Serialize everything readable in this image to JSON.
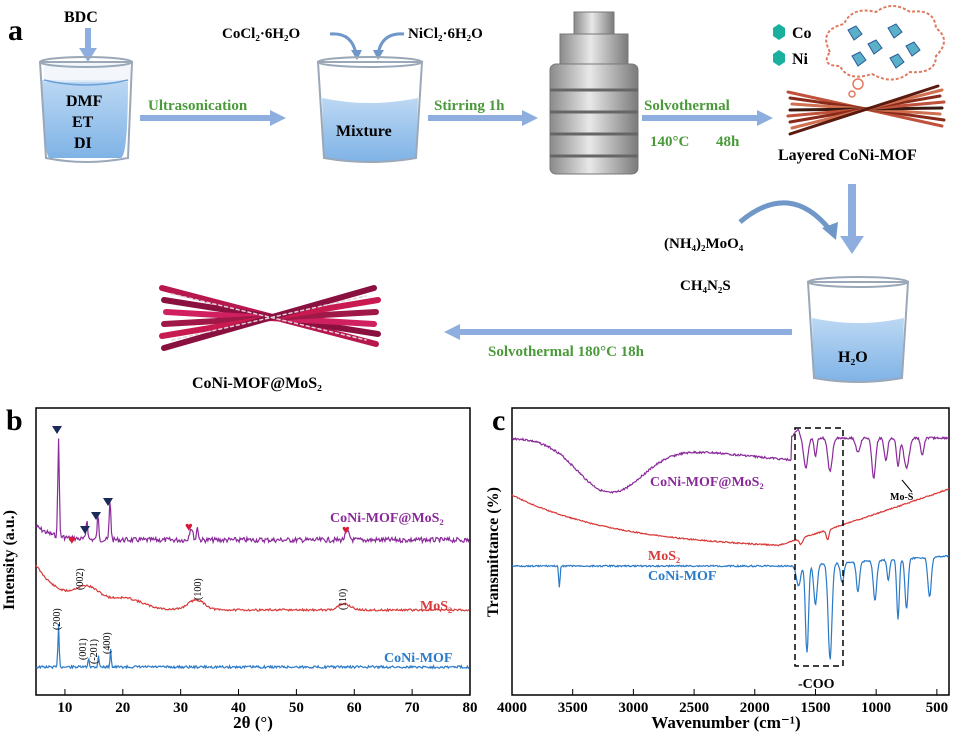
{
  "panel_a": {
    "label": "a",
    "bdc": "BDC",
    "solvents": [
      "DMF",
      "ET",
      "DI"
    ],
    "cocl2": "CoCl₂·6H₂O",
    "nicl2": "NiCl₂·6H₂O",
    "ultrasonication": "Ultrasonication",
    "mixture": "Mixture",
    "stirring": "Stirring 1h",
    "solvothermal_1": "Solvothermal",
    "cond_temp_1": "140°C",
    "cond_time_1": "48h",
    "legend_co": "Co",
    "legend_ni": "Ni",
    "layered_mof": "Layered CoNi-MOF",
    "reagent_1": "(NH₄)₂MoO₄",
    "reagent_2": "CH₄N₂S",
    "water": "H₂O",
    "solvothermal_2": "Solvothermal  180°C  18h",
    "product": "CoNi-MOF@MoS₂",
    "colors": {
      "arrow": "#8eaee0",
      "green_text": "#4a9a3a",
      "fiber": "#b8174e",
      "cloud": "#e07a5f"
    }
  },
  "panel_b": {
    "label": "b",
    "ylabel": "Intensity (a.u.)",
    "xlabel": "2θ (°)",
    "series_labels": {
      "composite": "CoNi-MOF@MoS₂",
      "mos2": "MoS₂",
      "mof": "CoNi-MOF"
    },
    "peak_labels": [
      "(002)",
      "(100)",
      "(110)",
      "(200)",
      "(001)",
      "(-201)",
      "(400)"
    ],
    "colors": {
      "composite": "#8a2a9a",
      "mos2": "#d83a3a",
      "mof": "#2a7ac8",
      "marker": "#1a2a5a",
      "heart": "#d81a3a"
    }
  },
  "panel_c": {
    "label": "c",
    "ylabel": "Transmittance (%)",
    "xlabel": "Wavenumber (cm⁻¹)",
    "series_labels": {
      "composite": "CoNi-MOF@MoS₂",
      "mos2": "MoS₂",
      "mof": "CoNi-MOF"
    },
    "annotation_mos": "Mo-S",
    "annotation_coo": "-COO"
  },
  "chart_data": [
    {
      "type": "line",
      "title": "",
      "xlabel": "2θ (°)",
      "ylabel": "Intensity (a.u.)",
      "xlim": [
        5,
        80
      ],
      "x_ticks": [
        10,
        20,
        30,
        40,
        50,
        60,
        70,
        80
      ],
      "series": [
        {
          "name": "CoNi-MOF@MoS₂",
          "peaks_2theta": [
            8.9,
            13.8,
            15.7,
            17.8,
            31.8,
            32.9,
            58.8
          ]
        },
        {
          "name": "MoS₂",
          "peaks_2theta": [
            13.9,
            32.7,
            58.3
          ],
          "peak_labels": [
            "(002)",
            "(100)",
            "(110)"
          ]
        },
        {
          "name": "CoNi-MOF",
          "peaks_2theta": [
            8.9,
            14.1,
            15.8,
            17.9
          ],
          "peak_labels": [
            "(200)",
            "(001)",
            "(-201)",
            "(400)"
          ]
        }
      ]
    },
    {
      "type": "line",
      "title": "",
      "xlabel": "Wavenumber (cm⁻¹)",
      "ylabel": "Transmittance (%)",
      "xlim": [
        4000,
        400
      ],
      "x_ticks": [
        4000,
        3500,
        3000,
        2500,
        2000,
        1500,
        1000,
        500
      ],
      "series": [
        {
          "name": "CoNi-MOF@MoS₂",
          "bands_cm1": [
            3200,
            1580,
            1380,
            1020,
            820,
            750
          ]
        },
        {
          "name": "MoS₂",
          "bands_cm1": [
            1400,
            1620
          ]
        },
        {
          "name": "CoNi-MOF",
          "bands_cm1": [
            3610,
            1570,
            1380,
            1010,
            820,
            750
          ]
        }
      ],
      "annotations": [
        "Mo-S",
        "-COO"
      ]
    }
  ]
}
